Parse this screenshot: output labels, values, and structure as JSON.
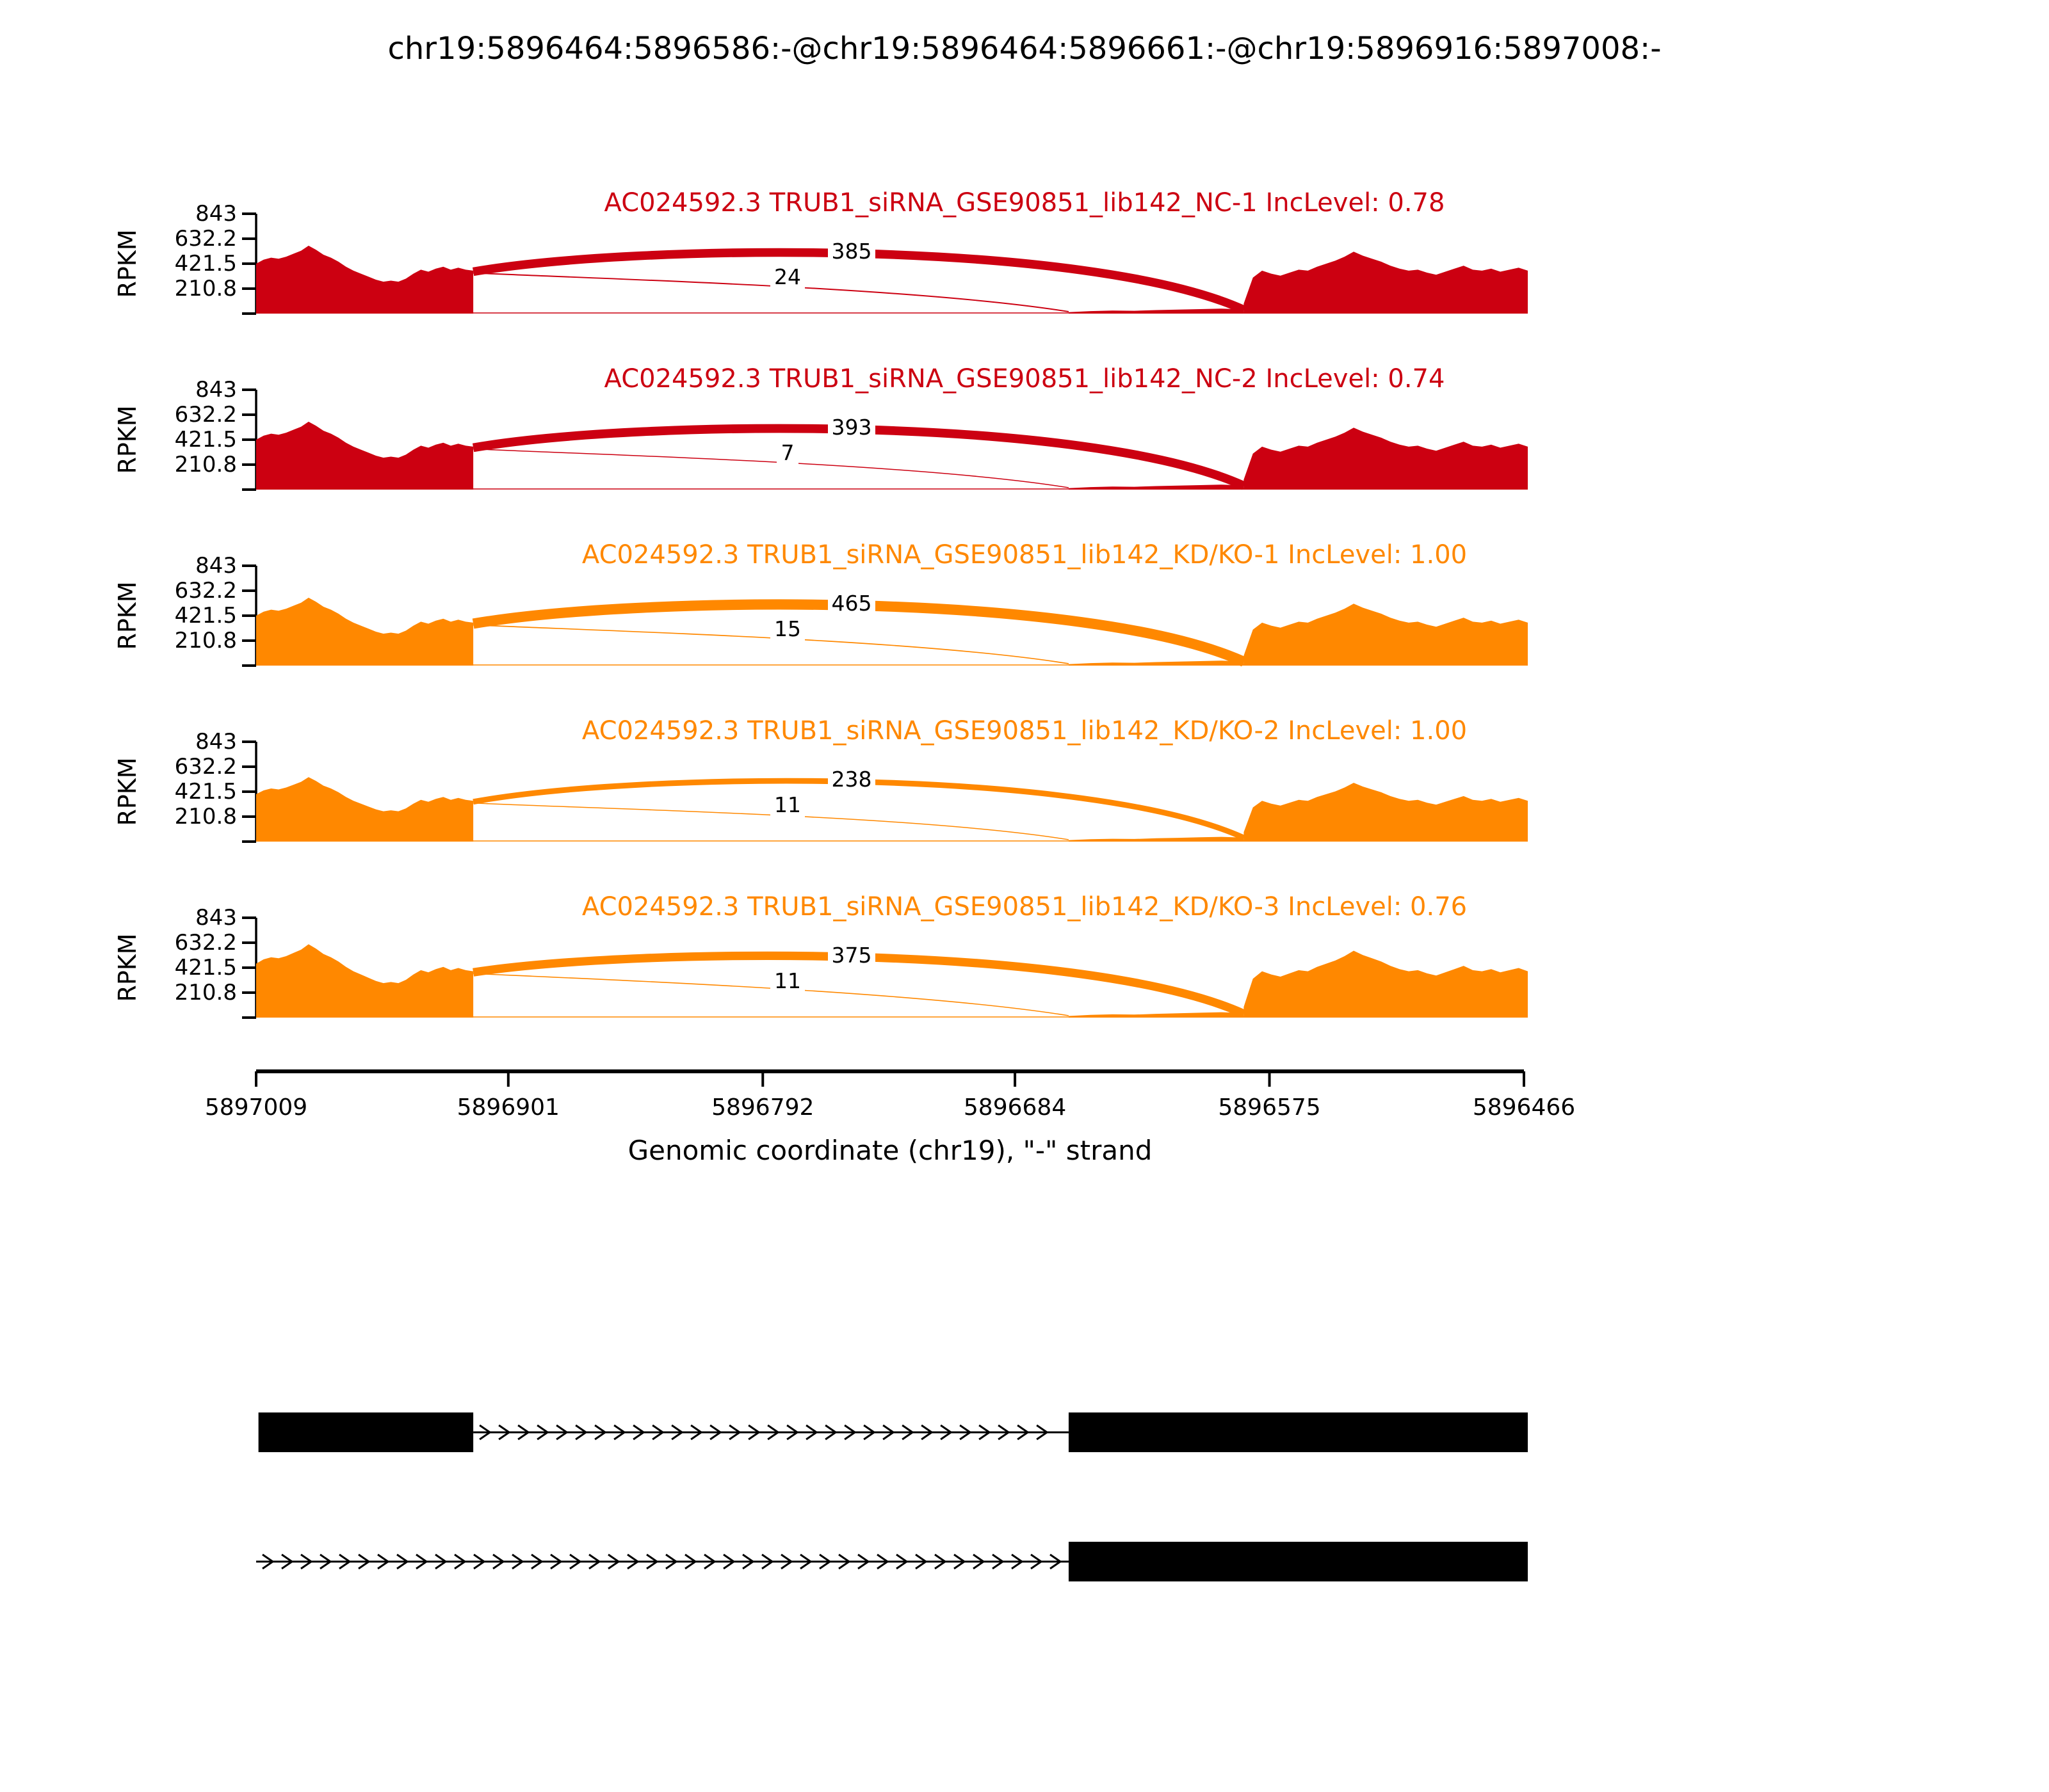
{
  "figure": {
    "title": "chr19:5896464:5896586:-@chr19:5896464:5896661:-@chr19:5896916:5897008:-"
  },
  "chart_data": {
    "type": "sashimi",
    "region": {
      "chrom": "chr19",
      "strand": "-"
    },
    "x_axis": {
      "label": "Genomic coordinate (chr19), \"-\" strand",
      "ticks": [
        5897009,
        5896901,
        5896792,
        5896684,
        5896575,
        5896466
      ],
      "range": [
        5897009,
        5896466
      ],
      "orientation": "reversed"
    },
    "y_axis": {
      "label": "RPKM",
      "ticks": [
        843,
        632.2,
        421.5,
        210.8
      ],
      "max": 843
    },
    "event_exons": {
      "upstream_exon": [
        5896916,
        5897008
      ],
      "long_exon": [
        5896464,
        5896661
      ],
      "short_exon": [
        5896464,
        5896586
      ]
    },
    "tracks": [
      {
        "label": "AC024592.3 TRUB1_siRNA_GSE90851_lib142_NC-1 IncLevel: 0.78",
        "gene": "AC024592.3",
        "sample": "TRUB1_siRNA_GSE90851_lib142_NC-1",
        "inc_level": 0.78,
        "color": "#CC0011",
        "amplitude": 1.0,
        "junctions": [
          {
            "from": 5896916,
            "to": 5896586,
            "reads": 385
          },
          {
            "from": 5896916,
            "to": 5896661,
            "reads": 24
          }
        ]
      },
      {
        "label": "AC024592.3 TRUB1_siRNA_GSE90851_lib142_NC-2 IncLevel: 0.74",
        "gene": "AC024592.3",
        "sample": "TRUB1_siRNA_GSE90851_lib142_NC-2",
        "inc_level": 0.74,
        "color": "#CC0011",
        "amplitude": 1.0,
        "junctions": [
          {
            "from": 5896916,
            "to": 5896586,
            "reads": 393
          },
          {
            "from": 5896916,
            "to": 5896661,
            "reads": 7
          }
        ]
      },
      {
        "label": "AC024592.3 TRUB1_siRNA_GSE90851_lib142_KD/KO-1 IncLevel: 1.00",
        "gene": "AC024592.3",
        "sample": "TRUB1_siRNA_GSE90851_lib142_KD/KO-1",
        "inc_level": 1.0,
        "color": "#FF8800",
        "amplitude": 1.0,
        "junctions": [
          {
            "from": 5896916,
            "to": 5896586,
            "reads": 465
          },
          {
            "from": 5896916,
            "to": 5896661,
            "reads": 15
          }
        ]
      },
      {
        "label": "AC024592.3 TRUB1_siRNA_GSE90851_lib142_KD/KO-2 IncLevel: 1.00",
        "gene": "AC024592.3",
        "sample": "TRUB1_siRNA_GSE90851_lib142_KD/KO-2",
        "inc_level": 1.0,
        "color": "#FF8800",
        "amplitude": 0.95,
        "junctions": [
          {
            "from": 5896916,
            "to": 5896586,
            "reads": 238
          },
          {
            "from": 5896916,
            "to": 5896661,
            "reads": 11
          }
        ]
      },
      {
        "label": "AC024592.3 TRUB1_siRNA_GSE90851_lib142_KD/KO-3 IncLevel: 0.76",
        "gene": "AC024592.3",
        "sample": "TRUB1_siRNA_GSE90851_lib142_KD/KO-3",
        "inc_level": 0.76,
        "color": "#FF8800",
        "amplitude": 1.08,
        "junctions": [
          {
            "from": 5896916,
            "to": 5896586,
            "reads": 375
          },
          {
            "from": 5896916,
            "to": 5896661,
            "reads": 11
          }
        ]
      }
    ],
    "coverage_profiles": {
      "left_exon": [
        0.5,
        0.54,
        0.56,
        0.55,
        0.57,
        0.6,
        0.63,
        0.68,
        0.64,
        0.59,
        0.56,
        0.52,
        0.47,
        0.43,
        0.4,
        0.37,
        0.34,
        0.32,
        0.33,
        0.32,
        0.35,
        0.4,
        0.44,
        0.42,
        0.45,
        0.47,
        0.44,
        0.46,
        0.44,
        0.43
      ],
      "right_exon": [
        0.1,
        0.36,
        0.43,
        0.4,
        0.38,
        0.41,
        0.44,
        0.43,
        0.47,
        0.5,
        0.53,
        0.57,
        0.62,
        0.58,
        0.55,
        0.52,
        0.48,
        0.45,
        0.43,
        0.44,
        0.41,
        0.39,
        0.42,
        0.45,
        0.48,
        0.44,
        0.43,
        0.45,
        0.42,
        0.44,
        0.46,
        0.43
      ],
      "low_region": [
        0.015,
        0.025,
        0.03,
        0.028,
        0.035,
        0.04,
        0.045,
        0.05,
        0.042
      ]
    },
    "annotation_rows": [
      {
        "exons": [
          [
            5896916,
            5897008
          ],
          [
            5896464,
            5896661
          ]
        ],
        "intron_line": [
          5896661,
          5896916
        ]
      },
      {
        "exons": [
          [
            5896464,
            5896661
          ]
        ],
        "intron_line": [
          5896661,
          5897009
        ]
      }
    ]
  }
}
